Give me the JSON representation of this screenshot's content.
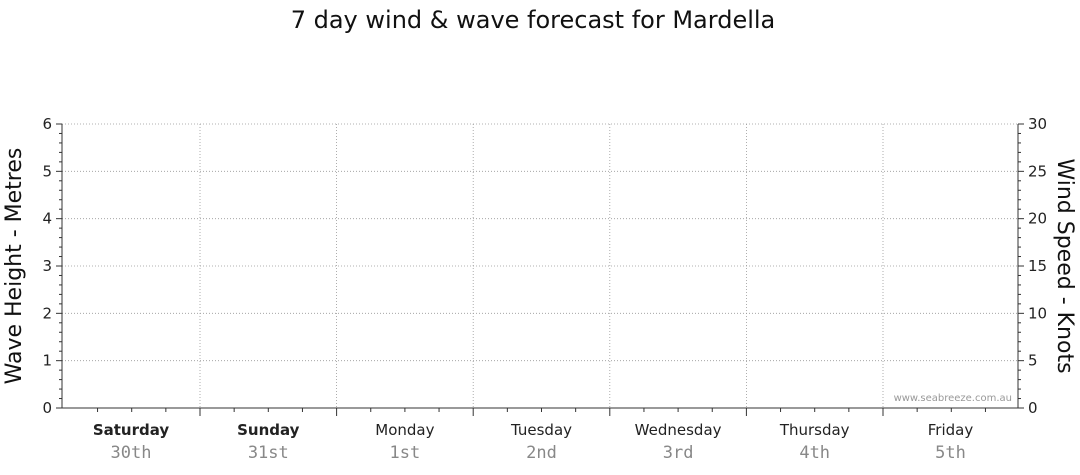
{
  "chart_data": {
    "type": "line",
    "title": "7 day wind & wave forecast for Mardella",
    "ylabel_left": "Wave Height - Metres",
    "ylabel_right": "Wind Speed - Knots",
    "ylim_left": [
      0,
      6
    ],
    "ylim_right": [
      0,
      30
    ],
    "yticks_left": [
      "0",
      "1",
      "2",
      "3",
      "4",
      "5",
      "6"
    ],
    "yticks_right": [
      "0",
      "5",
      "10",
      "15",
      "20",
      "25",
      "30"
    ],
    "grid": true,
    "days": [
      {
        "name": "Saturday",
        "date": "30th",
        "bold": true
      },
      {
        "name": "Sunday",
        "date": "31st",
        "bold": true
      },
      {
        "name": "Monday",
        "date": "1st",
        "bold": false
      },
      {
        "name": "Tuesday",
        "date": "2nd",
        "bold": false
      },
      {
        "name": "Wednesday",
        "date": "3rd",
        "bold": false
      },
      {
        "name": "Thursday",
        "date": "4th",
        "bold": false
      },
      {
        "name": "Friday",
        "date": "5th",
        "bold": false
      }
    ],
    "series": [],
    "watermark": "www.seabreeze.com.au"
  }
}
